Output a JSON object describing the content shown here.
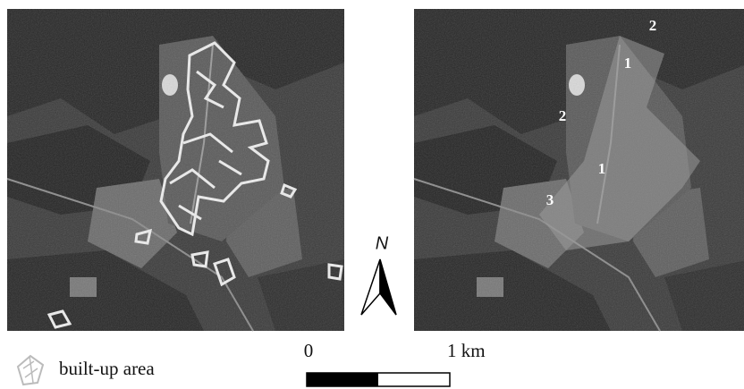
{
  "right_image": {
    "labels": [
      "2",
      "1",
      "2",
      "1",
      "3"
    ]
  },
  "north_arrow": {
    "label": "N"
  },
  "scale_bar": {
    "start": "0",
    "end": "1 km"
  },
  "legend": {
    "label": "built-up area"
  }
}
